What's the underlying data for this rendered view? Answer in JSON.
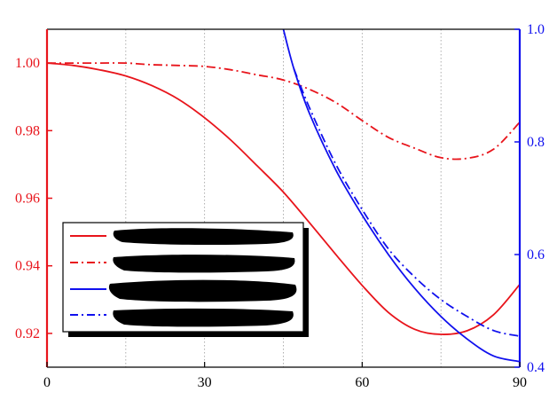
{
  "chart_data": {
    "type": "line",
    "x_ticks": [
      0,
      30,
      60,
      90
    ],
    "xlim": [
      0,
      90
    ],
    "y_left": {
      "lim": [
        0.91,
        1.01
      ],
      "ticks": [
        "0.92",
        "0.94",
        "0.96",
        "0.98",
        "1.00"
      ],
      "color": "#e8141b"
    },
    "y_right": {
      "lim": [
        0.4,
        1.0
      ],
      "ticks": [
        "0.4",
        "0.6",
        "0.8",
        "1.0"
      ],
      "color": "#1010ee"
    },
    "grid": "vertical dotted",
    "legend": {
      "position": "lower-left",
      "entries_redacted": true
    },
    "series": [
      {
        "axis": "left",
        "color": "#e8141b",
        "style": "solid",
        "x": [
          0,
          5,
          10,
          15,
          20,
          25,
          30,
          35,
          40,
          45,
          50,
          55,
          60,
          65,
          70,
          75,
          80,
          85,
          90
        ],
        "y": [
          1.0,
          0.9993,
          0.998,
          0.9962,
          0.9933,
          0.9893,
          0.9838,
          0.9772,
          0.9696,
          0.9618,
          0.9527,
          0.9433,
          0.9342,
          0.9262,
          0.9212,
          0.9197,
          0.9208,
          0.9255,
          0.9345
        ]
      },
      {
        "axis": "left",
        "color": "#e8141b",
        "style": "dashdot",
        "x": [
          0,
          5,
          10,
          15,
          20,
          25,
          30,
          35,
          40,
          45,
          50,
          55,
          60,
          65,
          70,
          75,
          80,
          85,
          90
        ],
        "y": [
          1.0,
          1.0,
          1.0,
          1.0,
          0.9995,
          0.9993,
          0.999,
          0.998,
          0.9965,
          0.995,
          0.9922,
          0.9883,
          0.983,
          0.978,
          0.9748,
          0.972,
          0.9718,
          0.9745,
          0.9825
        ]
      },
      {
        "axis": "right",
        "color": "#1010ee",
        "style": "solid",
        "x": [
          45,
          47,
          50,
          55,
          60,
          65,
          70,
          75,
          80,
          85,
          90
        ],
        "y": [
          1.0,
          0.93,
          0.85,
          0.75,
          0.67,
          0.6,
          0.54,
          0.49,
          0.45,
          0.42,
          0.41
        ]
      },
      {
        "axis": "right",
        "color": "#1010ee",
        "style": "dashdot",
        "x": [
          47,
          50,
          55,
          60,
          65,
          70,
          75,
          80,
          85,
          90
        ],
        "y": [
          0.93,
          0.86,
          0.76,
          0.68,
          0.61,
          0.56,
          0.52,
          0.49,
          0.465,
          0.455
        ]
      }
    ]
  }
}
